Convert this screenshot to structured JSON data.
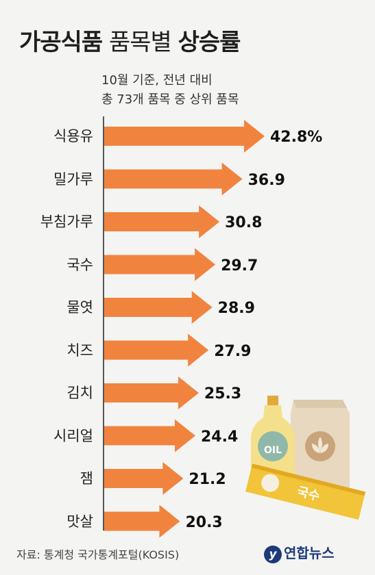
{
  "title_bold_1": "가공식품",
  "title_normal": "품목별",
  "title_bold_2": "상승률",
  "subtitle_line1": "10월 기준, 전년 대비",
  "subtitle_line2": "총 73개 품목 중 상위 품목",
  "source": "자료: 통계청 국가통계포털(KOSIS)",
  "logo_text": "연합뉴스",
  "illustration": {
    "oil_label": "OIL",
    "noodle_label": "국수"
  },
  "colors": {
    "bar": "#f0843f",
    "axis": "#555555",
    "background": "#f4f4f2"
  },
  "chart_data": {
    "type": "bar",
    "orientation": "horizontal",
    "categories": [
      "식용유",
      "밀가루",
      "부침가루",
      "국수",
      "물엿",
      "치즈",
      "김치",
      "시리얼",
      "잼",
      "맛살"
    ],
    "values": [
      42.8,
      36.9,
      30.8,
      29.7,
      28.9,
      27.9,
      25.3,
      24.4,
      21.2,
      20.3
    ],
    "value_labels": [
      "42.8%",
      "36.9",
      "30.8",
      "29.7",
      "28.9",
      "27.9",
      "25.3",
      "24.4",
      "21.2",
      "20.3"
    ],
    "title": "가공식품 품목별 상승률",
    "xlabel": "",
    "ylabel": "",
    "xlim": [
      0,
      42.8
    ],
    "grid": false
  }
}
